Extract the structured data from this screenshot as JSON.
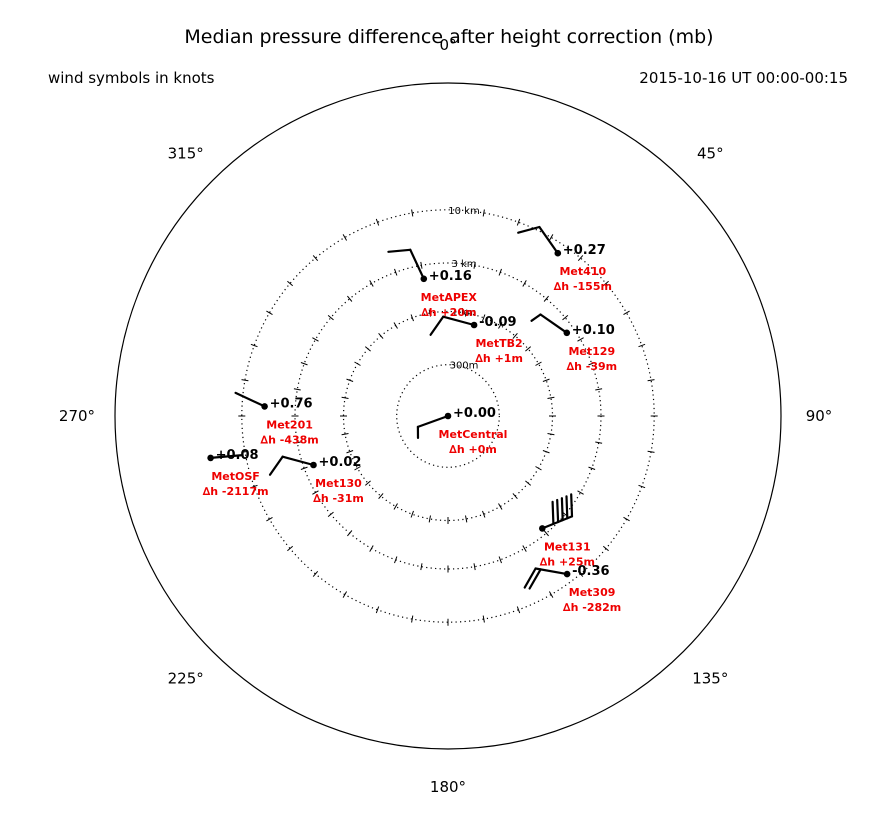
{
  "title": "Median pressure difference after height correction (mb)",
  "left_note": "wind symbols in knots",
  "right_note": "2015-10-16 UT 00:00-00:15",
  "colors": {
    "station_label": "#ee0000",
    "ink": "#000000"
  },
  "chart_data": {
    "type": "polar",
    "angle_labels": [
      {
        "angle": 0,
        "label": "0°"
      },
      {
        "angle": 45,
        "label": "45°"
      },
      {
        "angle": 90,
        "label": "90°"
      },
      {
        "angle": 135,
        "label": "135°"
      },
      {
        "angle": 180,
        "label": "180°"
      },
      {
        "angle": 225,
        "label": "225°"
      },
      {
        "angle": 270,
        "label": "270°"
      },
      {
        "angle": 315,
        "label": "315°"
      }
    ],
    "radial_scale": "log",
    "range_rings": [
      {
        "distance_km": 0.3,
        "label": "300m"
      },
      {
        "distance_km": 1,
        "label": "1 km"
      },
      {
        "distance_km": 3,
        "label": "3 km"
      },
      {
        "distance_km": 10,
        "label": "10 km"
      }
    ],
    "stations": [
      {
        "name": "MetCentral",
        "dh": "∆h +0m",
        "pressure": "+0.00",
        "bearing": 0,
        "distance_km": 0,
        "wind_from": 250,
        "barbs": [
          5
        ]
      },
      {
        "name": "MetTB2",
        "dh": "∆h +1m",
        "pressure": "-0.09",
        "bearing": 16,
        "distance_km": 0.8,
        "wind_from": 285,
        "barbs": [
          10
        ]
      },
      {
        "name": "MetAPEX",
        "dh": "∆h +20m",
        "pressure": "+0.16",
        "bearing": 350,
        "distance_km": 2.2,
        "wind_from": 335,
        "barbs": [
          10
        ]
      },
      {
        "name": "Met410",
        "dh": "∆h -155m",
        "pressure": "+0.27",
        "bearing": 34,
        "distance_km": 8,
        "wind_from": 325,
        "barbs": [
          10
        ]
      },
      {
        "name": "Met129",
        "dh": "∆h -39m",
        "pressure": "+0.10",
        "bearing": 55,
        "distance_km": 2.5,
        "wind_from": 305,
        "barbs": [
          5
        ]
      },
      {
        "name": "Met201",
        "dh": "∆h -438m",
        "pressure": "+0.76",
        "bearing": 273,
        "distance_km": 6,
        "wind_from": 295,
        "barbs": []
      },
      {
        "name": "Met130",
        "dh": "∆h -31m",
        "pressure": "+0.02",
        "bearing": 250,
        "distance_km": 2.4,
        "wind_from": 285,
        "barbs": [
          10
        ]
      },
      {
        "name": "MetOSF",
        "dh": "∆h -2117m",
        "pressure": "+0.08",
        "bearing": 260,
        "distance_km": 22,
        "wind_from": 85,
        "barbs": []
      },
      {
        "name": "Met131",
        "dh": "∆h +25m",
        "pressure": "",
        "bearing": 140,
        "distance_km": 2.6,
        "wind_from": 68,
        "barbs": [
          10,
          10,
          10,
          10,
          10
        ]
      },
      {
        "name": "Met309",
        "dh": "∆h -282m",
        "pressure": "-0.36",
        "bearing": 143,
        "distance_km": 8.3,
        "wind_from": 280,
        "barbs": [
          10,
          10
        ]
      }
    ]
  }
}
